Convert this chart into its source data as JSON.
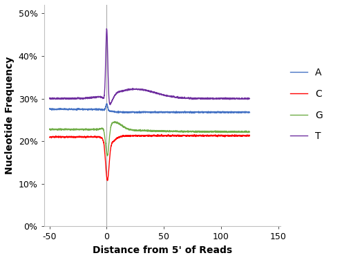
{
  "title": "",
  "xlabel": "Distance from 5' of Reads",
  "ylabel": "Nucleotide Frequency",
  "xlim": [
    -55,
    152
  ],
  "ylim": [
    0.0,
    0.52
  ],
  "xticks": [
    -50,
    0,
    50,
    100,
    150
  ],
  "yticks": [
    0.0,
    0.1,
    0.2,
    0.3,
    0.4,
    0.5
  ],
  "ytick_labels": [
    "0%",
    "10%",
    "20%",
    "30%",
    "40%",
    "50%"
  ],
  "colors": {
    "A": "#4472C4",
    "C": "#FF0000",
    "G": "#70AD47",
    "T": "#7030A0"
  },
  "background_color": "#ffffff"
}
